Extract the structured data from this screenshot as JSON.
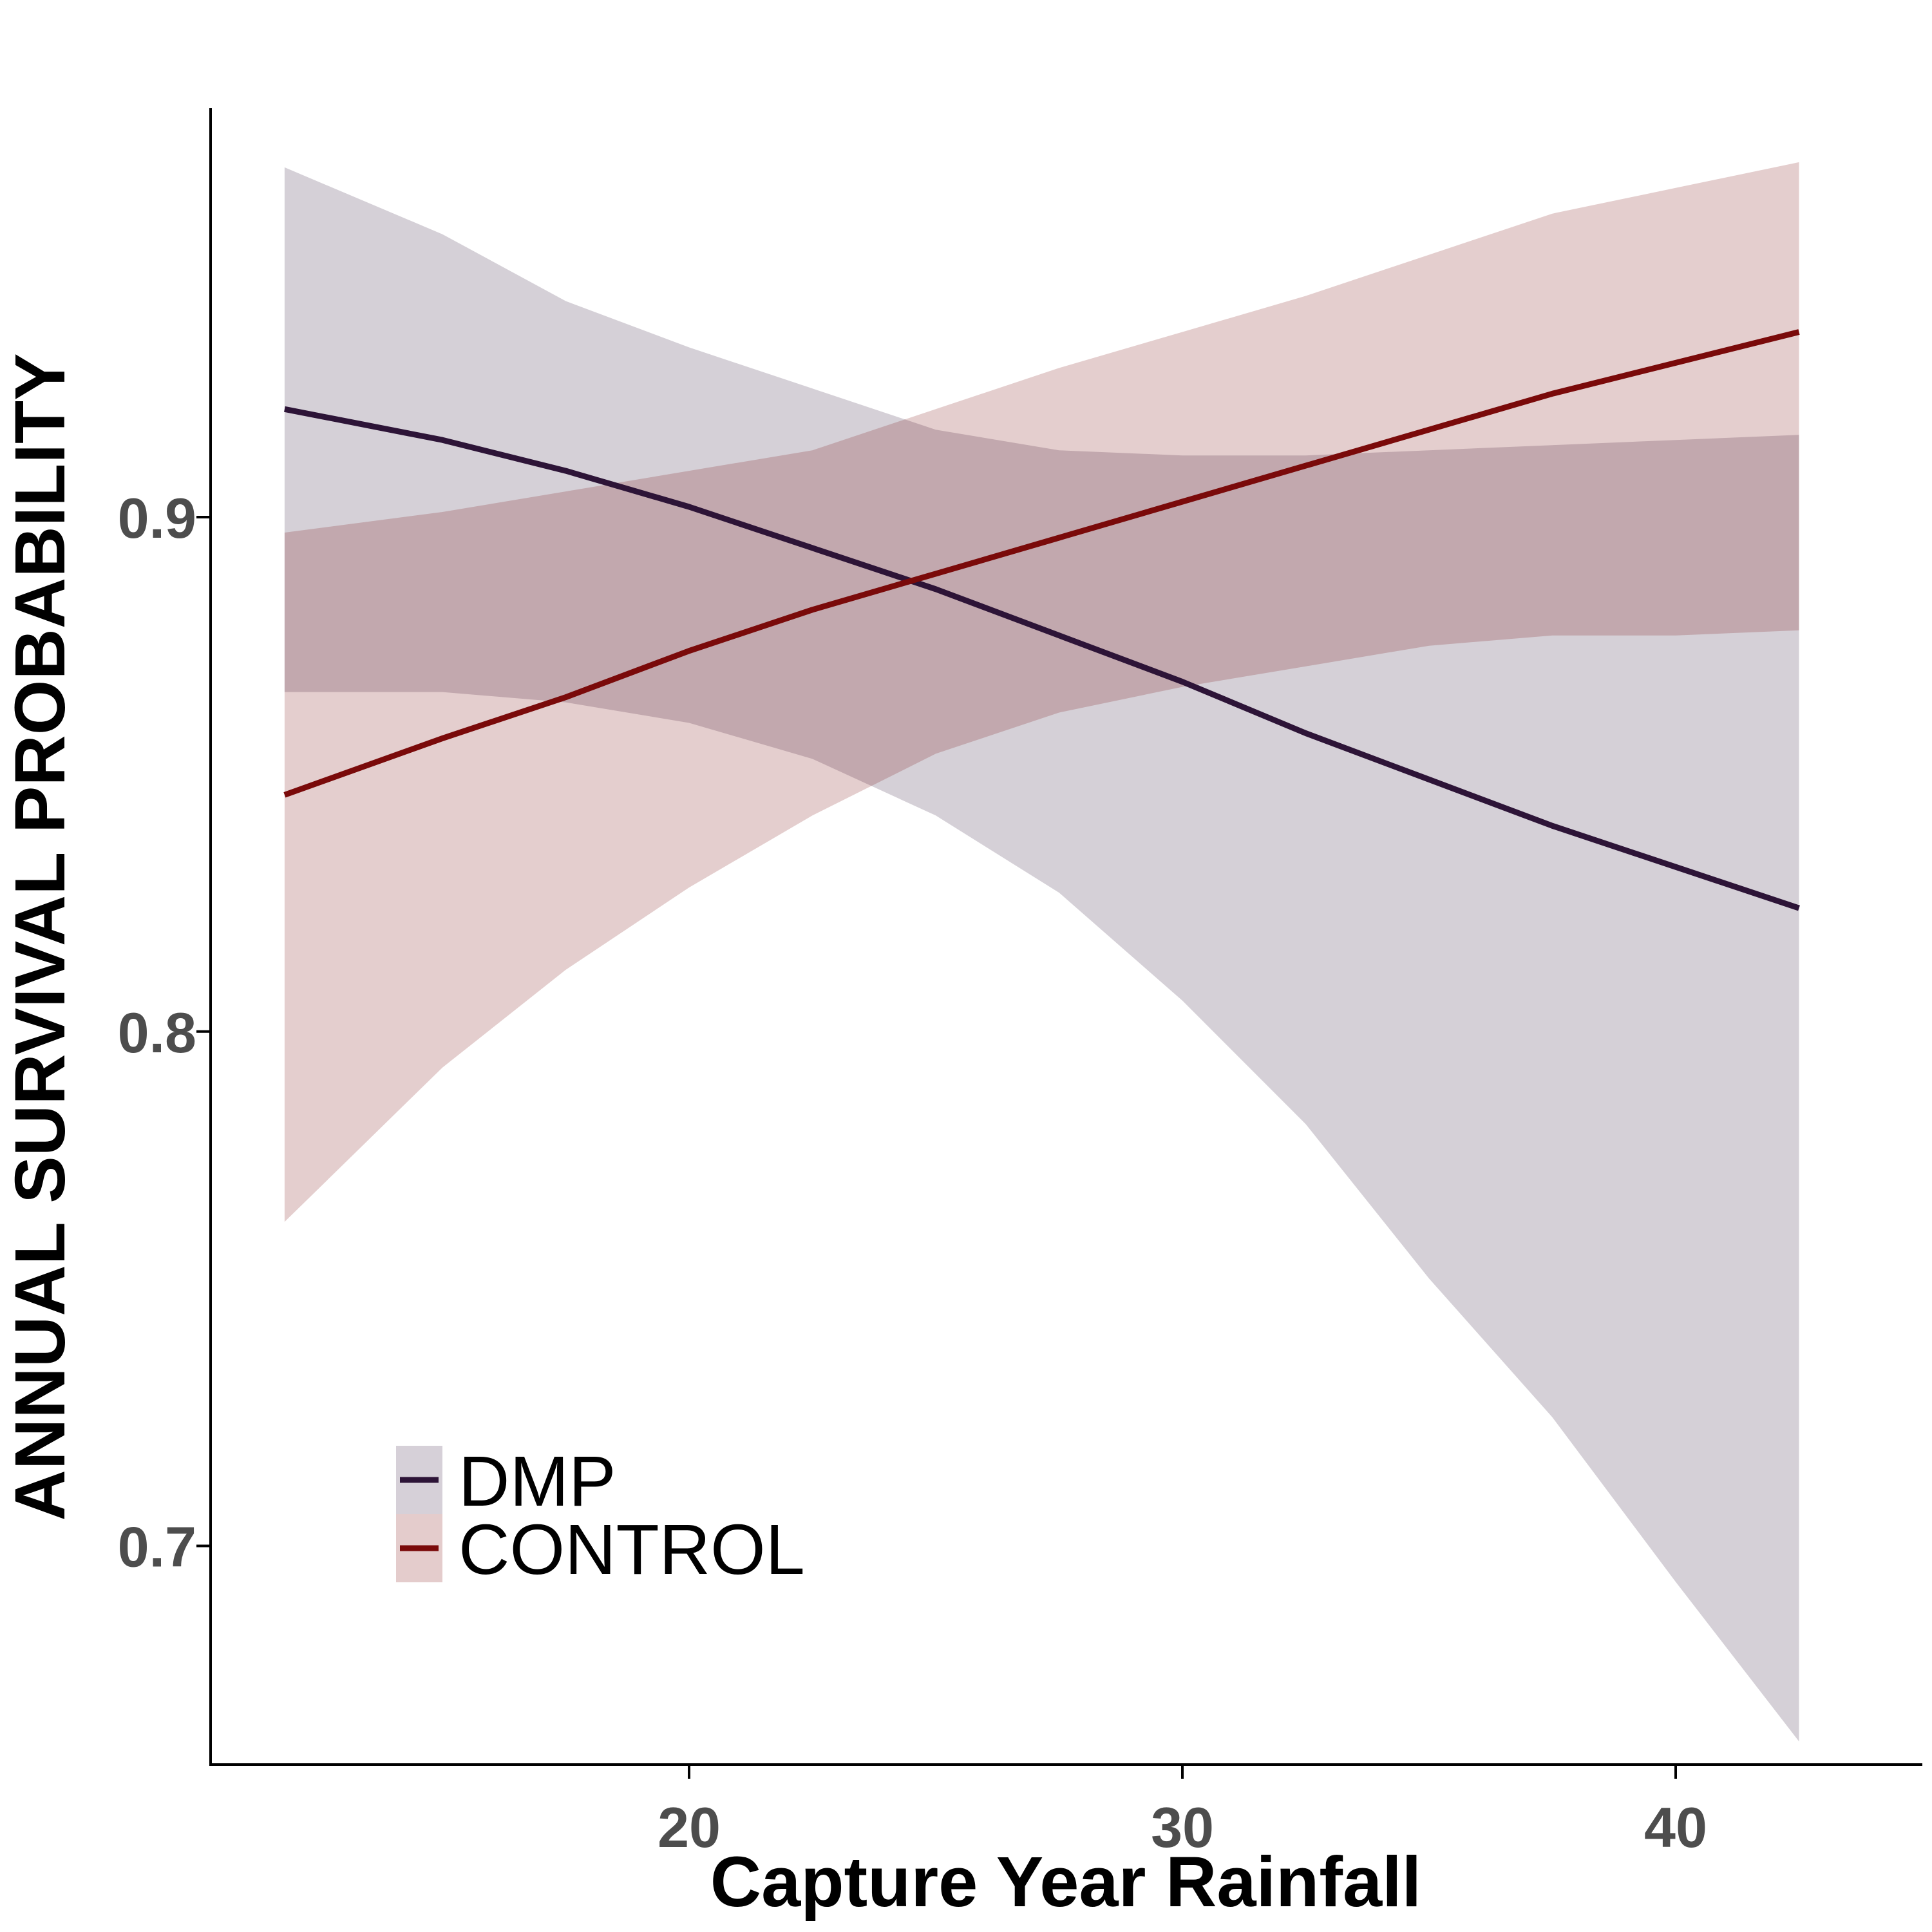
{
  "chart_data": {
    "type": "line",
    "title": "",
    "xlabel": "Capture Year Rainfall",
    "ylabel": "ANNUAL SURVIVAL PROBABILITY",
    "xlim": [
      10.3,
      45
    ],
    "ylim": [
      0.6575,
      0.9795
    ],
    "xticks": [
      20,
      30,
      40
    ],
    "xtick_labels": [
      "20",
      "30",
      "40"
    ],
    "yticks": [
      0.7,
      0.8,
      0.9
    ],
    "ytick_labels": [
      "0.7",
      "0.8",
      "0.9"
    ],
    "grid": false,
    "legend_position": "bottom-left",
    "series": [
      {
        "name": "DMP",
        "line_color": "#2d1437",
        "band_color": "#d6d0d8",
        "x": [
          11.8,
          15,
          17.5,
          20,
          22.5,
          25,
          27.5,
          30,
          32.5,
          35,
          37.5,
          40,
          42.5
        ],
        "y": [
          0.921,
          0.915,
          0.909,
          0.902,
          0.894,
          0.886,
          0.877,
          0.868,
          0.858,
          0.849,
          0.84,
          0.832,
          0.824
        ],
        "lower": [
          0.866,
          0.866,
          0.864,
          0.86,
          0.853,
          0.842,
          0.827,
          0.806,
          0.782,
          0.752,
          0.725,
          0.693,
          0.662
        ],
        "upper": [
          0.968,
          0.955,
          0.942,
          0.933,
          0.925,
          0.917,
          0.913,
          0.912,
          0.912,
          0.913,
          0.914,
          0.915,
          0.916
        ]
      },
      {
        "name": "CONTROL",
        "line_color": "#7a0a0a",
        "band_color": "#e4cccc",
        "x": [
          11.8,
          15,
          17.5,
          20,
          22.5,
          25,
          27.5,
          30,
          32.5,
          35,
          37.5,
          40,
          42.5
        ],
        "y": [
          0.846,
          0.857,
          0.865,
          0.874,
          0.882,
          0.889,
          0.896,
          0.903,
          0.91,
          0.917,
          0.924,
          0.93,
          0.936
        ],
        "lower": [
          0.763,
          0.793,
          0.812,
          0.828,
          0.842,
          0.854,
          0.862,
          0.867,
          0.871,
          0.875,
          0.877,
          0.877,
          0.878
        ],
        "upper": [
          0.897,
          0.901,
          0.905,
          0.909,
          0.913,
          0.921,
          0.929,
          0.936,
          0.943,
          0.951,
          0.959,
          0.964,
          0.969
        ]
      }
    ]
  }
}
